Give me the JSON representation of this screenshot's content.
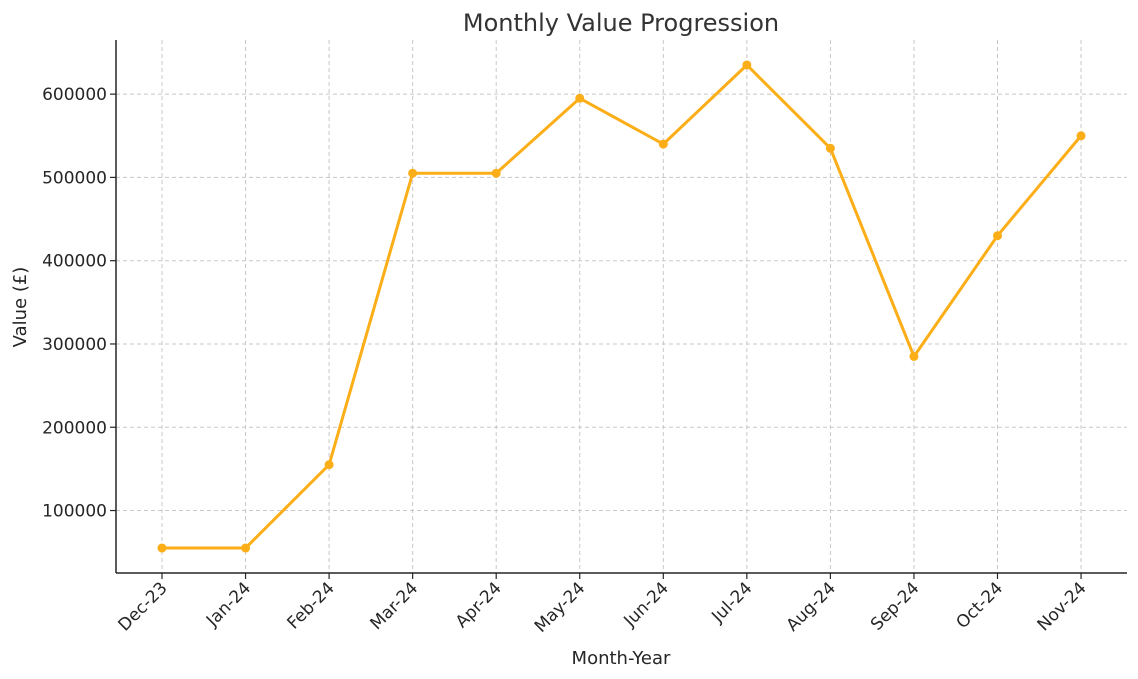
{
  "chart_data": {
    "type": "line",
    "title": "Monthly Value Progression",
    "xlabel": "Month-Year",
    "ylabel": "Value (£)",
    "categories": [
      "Dec-23",
      "Jan-24",
      "Feb-24",
      "Mar-24",
      "Apr-24",
      "May-24",
      "Jun-24",
      "Jul-24",
      "Aug-24",
      "Sep-24",
      "Oct-24",
      "Nov-24"
    ],
    "series": [
      {
        "values": [
          55000,
          55000,
          155000,
          505000,
          505000,
          595000,
          540000,
          635000,
          535000,
          285000,
          430000,
          550000
        ],
        "color": "#FBAE17"
      }
    ],
    "yticks": [
      100000,
      200000,
      300000,
      400000,
      500000,
      600000
    ],
    "ytick_labels": [
      "100000",
      "200000",
      "300000",
      "400000",
      "500000",
      "600000"
    ],
    "ylim": [
      25000,
      665000
    ],
    "grid": true,
    "marker": "circle"
  }
}
